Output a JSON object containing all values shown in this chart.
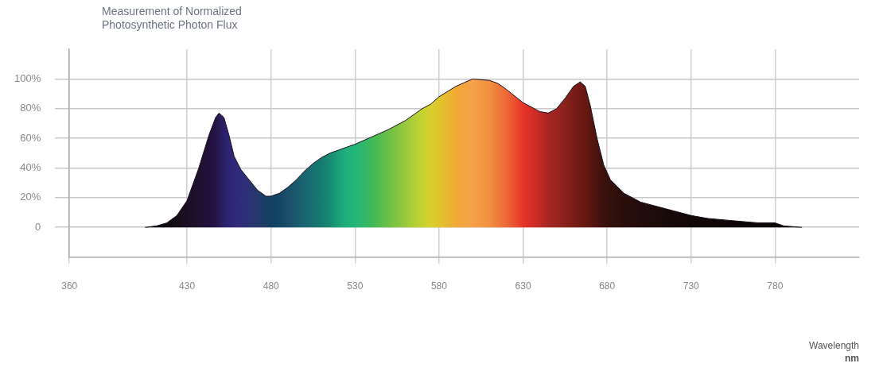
{
  "chart_data": {
    "type": "area",
    "title": "Measurement of Normalized Photosynthetic Photon Flux",
    "annotations": [
      "Wavelength",
      "nm"
    ],
    "x": [
      405,
      412,
      418,
      424,
      430,
      437,
      443,
      447,
      449,
      452,
      455,
      458,
      462,
      467,
      472,
      477,
      480,
      485,
      490,
      495,
      500,
      505,
      510,
      515,
      520,
      525,
      530,
      540,
      550,
      560,
      570,
      575,
      580,
      590,
      600,
      610,
      615,
      620,
      630,
      640,
      645,
      650,
      655,
      660,
      664,
      667,
      670,
      674,
      678,
      682,
      690,
      700,
      710,
      720,
      730,
      740,
      750,
      760,
      770,
      780,
      785,
      796
    ],
    "series": [
      {
        "color": "#1a1020",
        "values": [
          0,
          1,
          3,
          8,
          18,
          40,
          62,
          74,
          77,
          74,
          62,
          48,
          39,
          32,
          25,
          21,
          21,
          23,
          27,
          32,
          38,
          43,
          47,
          50,
          52,
          54,
          56,
          61,
          66,
          72,
          80,
          83,
          88,
          95,
          100,
          99,
          97,
          93,
          84,
          78,
          77,
          80,
          87,
          95,
          98,
          95,
          82,
          60,
          42,
          32,
          23,
          17,
          14,
          11,
          8,
          6,
          5,
          4,
          3,
          3,
          1,
          0
        ],
        "colors": [
          "#0d0a0f",
          "#0d0a0f",
          "#100c12",
          "#140e16",
          "#1b0f25",
          "#20102e",
          "#22103c",
          "#251447",
          "#281a55",
          "#2b2068",
          "#2e2475",
          "#30287b",
          "#2f2c7a",
          "#2c3274",
          "#25386c",
          "#1a3e63",
          "#123f62",
          "#124564",
          "#1a4e6a",
          "#1b5a6e",
          "#1b6570",
          "#17706f",
          "#167b70",
          "#178a72",
          "#1aa078",
          "#1fb07a",
          "#22b67a",
          "#3fb85a",
          "#6cbf45",
          "#9ac93c",
          "#c4d330",
          "#d8cf2c",
          "#e0c52a",
          "#f1a936",
          "#f5a04a",
          "#f19040",
          "#ef7a3a",
          "#ee6a36",
          "#e8342a",
          "#c32a25",
          "#a82622",
          "#9a2420",
          "#8a201c",
          "#7a1d17",
          "#6e1a13",
          "#661812",
          "#5a1610",
          "#4b130e",
          "#3b110c",
          "#33100c",
          "#2a0e0b",
          "#220c0b",
          "#1c0b0a",
          "#170909",
          "#130808",
          "#110707",
          "#0f0707",
          "#0d0606",
          "#0c0606",
          "#0b0606",
          "#0a0606",
          "#0a0606"
        ]
      }
    ],
    "xlim": [
      360,
      830
    ],
    "xticks": [
      360,
      430,
      480,
      530,
      580,
      630,
      680,
      730,
      780
    ],
    "ylim": [
      -20,
      120
    ],
    "yticks": [
      {
        "value": 0,
        "label": "0"
      },
      {
        "value": 20,
        "label": "20%"
      },
      {
        "value": 40,
        "label": "40%"
      },
      {
        "value": 60,
        "label": "60%"
      },
      {
        "value": 80,
        "label": "80%"
      },
      {
        "value": 100,
        "label": "100%"
      }
    ],
    "grid": true,
    "legend": false
  }
}
